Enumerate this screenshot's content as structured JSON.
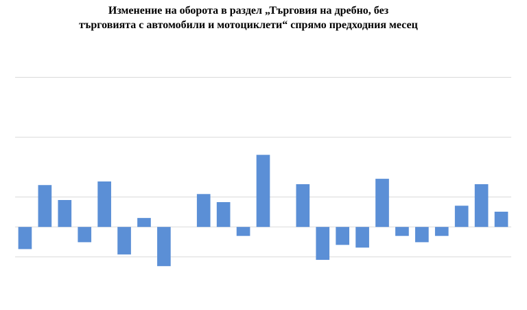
{
  "chart_data": {
    "type": "bar",
    "title": [
      "Изменение на оборота в раздел „Търговия на дребно, без",
      "търговията с автомобили и мотоциклети“ спрямо предходния месец"
    ],
    "values": [
      -0.74,
      1.4,
      0.9,
      -0.51,
      1.52,
      -0.92,
      0.3,
      -1.31,
      0,
      1.1,
      0.83,
      -0.3,
      2.41,
      0,
      1.43,
      -1.1,
      -0.6,
      -0.69,
      1.61,
      -0.3,
      -0.51,
      -0.3,
      0.71,
      1.43,
      0.51
    ],
    "color": "#5b8fd6",
    "ylim": [
      -2.5,
      6
    ],
    "yticks": [
      -1,
      1,
      3,
      5
    ],
    "grid": true
  }
}
